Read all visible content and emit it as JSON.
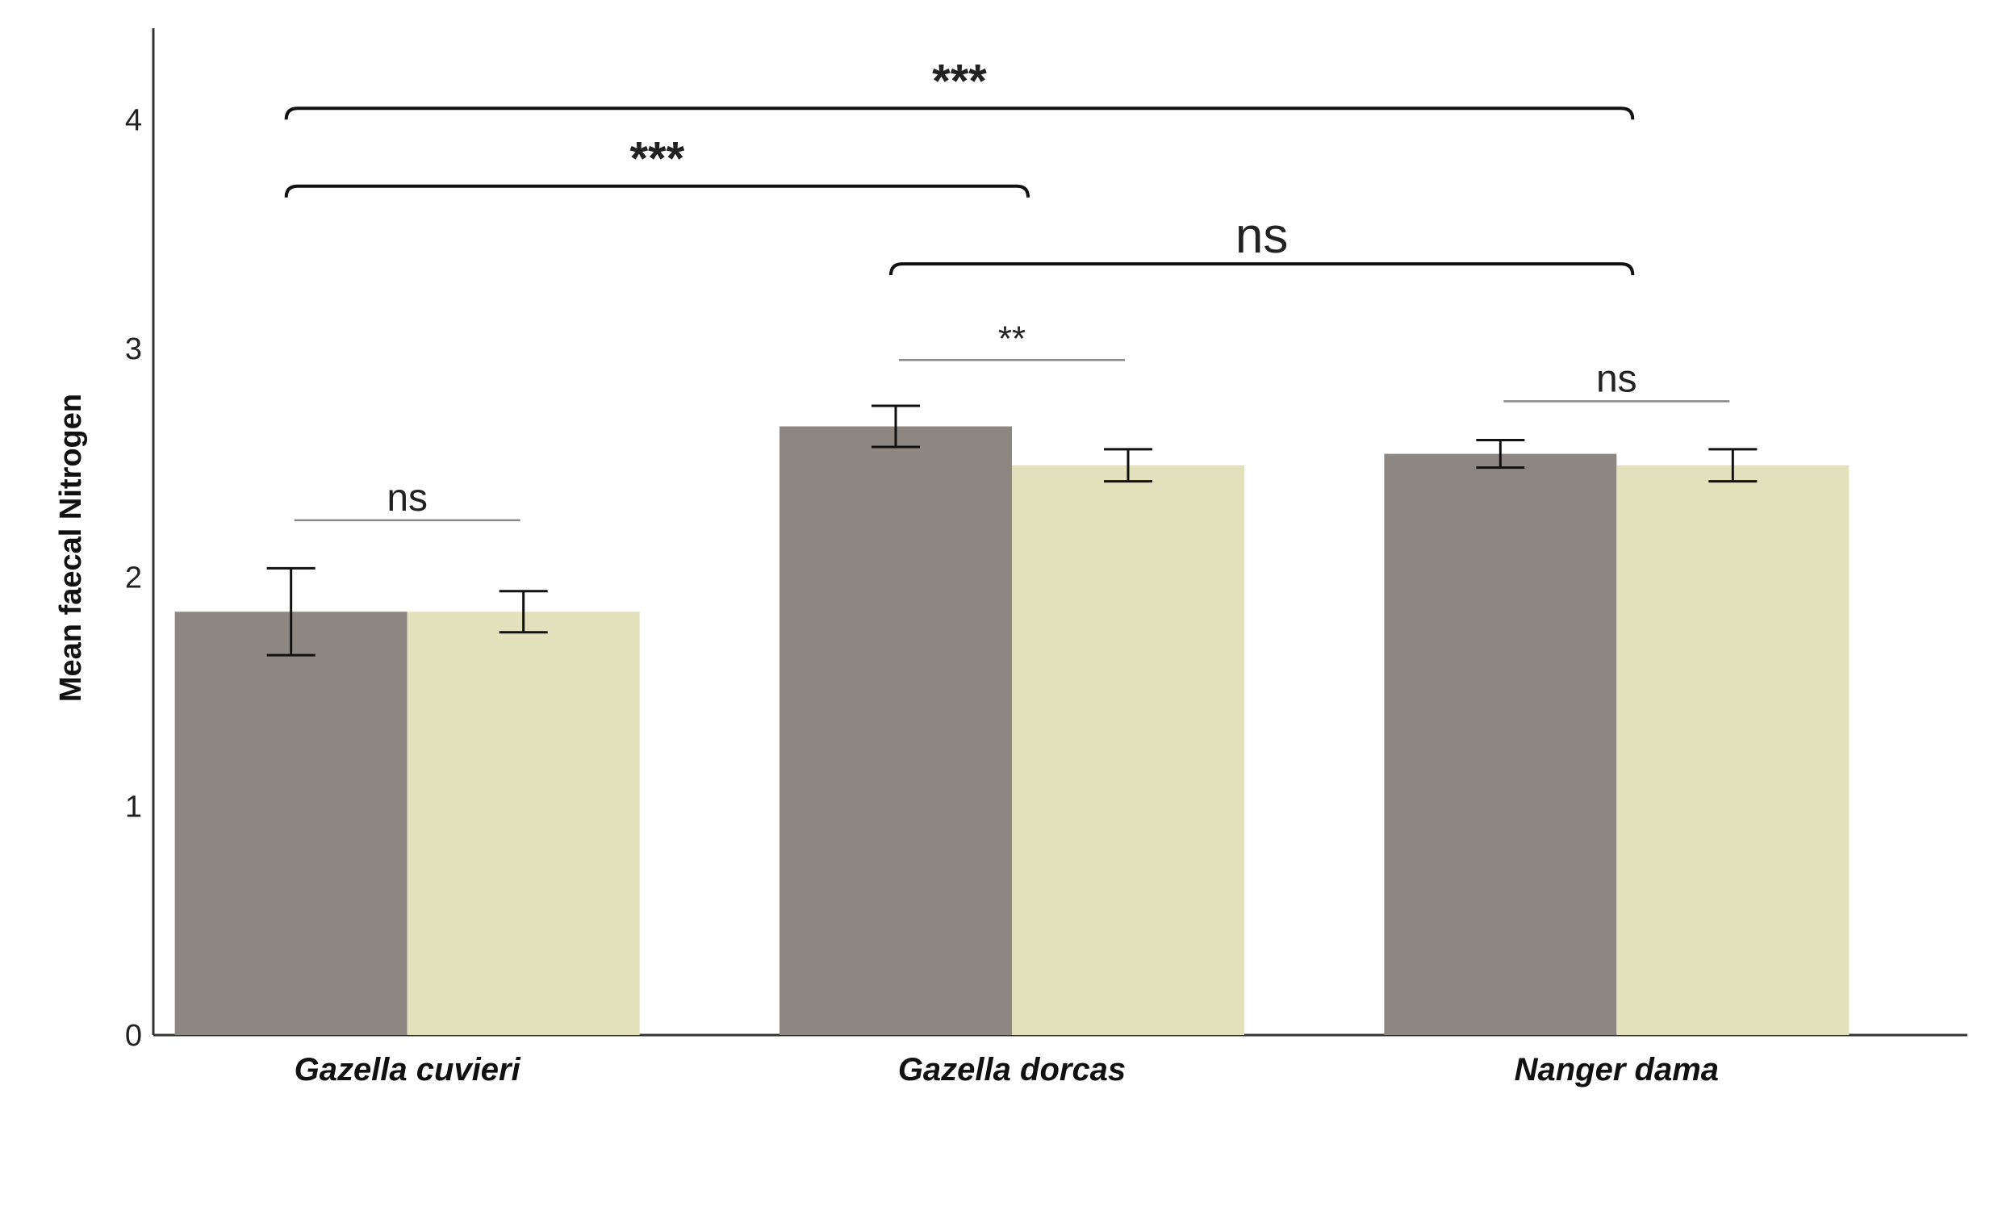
{
  "chart_data": {
    "type": "bar",
    "ylabel": "Mean faecal Nitrogen",
    "xlabel": "",
    "ylim": [
      0,
      4.4
    ],
    "yticks": [
      0,
      1,
      2,
      3,
      4
    ],
    "categories": [
      "Gazella cuvieri",
      "Gazella dorcas",
      "Nanger dama"
    ],
    "series": [
      {
        "color": "#8c8782",
        "values": [
          1.85,
          2.66,
          2.54
        ],
        "errors": [
          0.19,
          0.09,
          0.06
        ]
      },
      {
        "color": "#e2e1bc",
        "values": [
          1.85,
          2.49,
          2.49
        ],
        "errors": [
          0.09,
          0.07,
          0.07
        ]
      }
    ],
    "within_group_significance": [
      {
        "category": "Gazella cuvieri",
        "label": "ns",
        "level": 2.25
      },
      {
        "category": "Gazella dorcas",
        "label": "**",
        "level": 2.95
      },
      {
        "category": "Nanger dama",
        "label": "ns",
        "level": 2.77
      }
    ],
    "between_group_significance": [
      {
        "from": "Gazella cuvieri",
        "to": "Nanger dama",
        "label": "***",
        "level": 4.05
      },
      {
        "from": "Gazella cuvieri",
        "to": "Gazella dorcas",
        "label": "***",
        "level": 3.71
      },
      {
        "from": "Gazella dorcas",
        "to": "Nanger dama",
        "label": "ns",
        "level": 3.37
      }
    ],
    "grid": false,
    "legend": "none"
  }
}
